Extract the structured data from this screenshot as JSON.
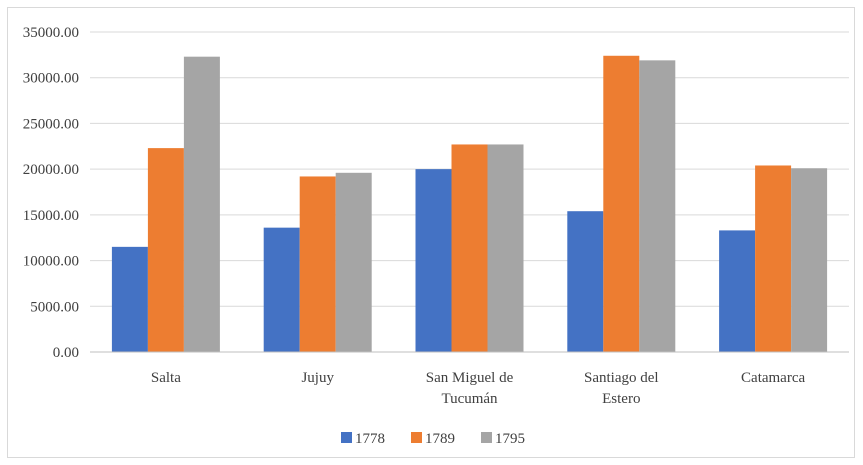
{
  "chart_data": {
    "type": "bar",
    "categories": [
      [
        "Salta"
      ],
      [
        "Jujuy"
      ],
      [
        "San Miguel de",
        "Tucumán"
      ],
      [
        "Santiago del",
        "Estero"
      ],
      [
        "Catamarca"
      ]
    ],
    "series": [
      {
        "name": "1778",
        "color": "#4472c4",
        "values": [
          11500,
          13600,
          20000,
          15400,
          13300
        ]
      },
      {
        "name": "1789",
        "color": "#ed7d31",
        "values": [
          22300,
          19200,
          22700,
          32400,
          20400
        ]
      },
      {
        "name": "1795",
        "color": "#a5a5a5",
        "values": [
          32300,
          19600,
          22700,
          31900,
          20100
        ]
      }
    ],
    "ylim": [
      0,
      35000
    ],
    "yticks": [
      "0.00",
      "5000.00",
      "10000.00",
      "15000.00",
      "20000.00",
      "25000.00",
      "30000.00",
      "35000.00"
    ],
    "grid": true,
    "legend_position": "bottom"
  }
}
